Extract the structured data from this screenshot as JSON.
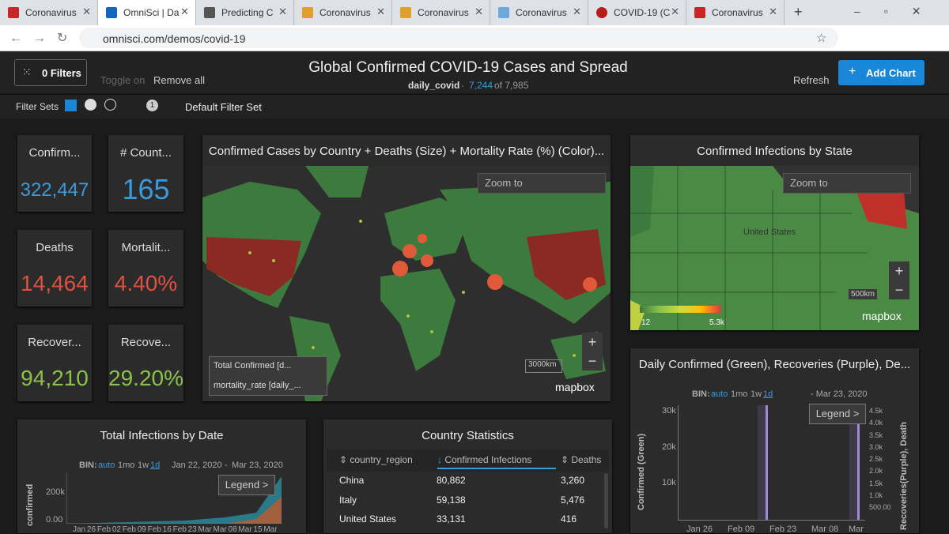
{
  "browser": {
    "tabs": [
      "Coronavirus",
      "OmniSci | Da",
      "Predicting C",
      "Coronavirus",
      "Coronavirus",
      "Coronavirus",
      "COVID-19 (C",
      "Coronavirus"
    ],
    "url": "omnisci.com/demos/covid-19"
  },
  "header": {
    "filters": "0 Filters",
    "toggle": "Toggle on",
    "remove_all": "Remove all",
    "title": "Global Confirmed COVID-19 Cases and Spread",
    "source": "daily_covid",
    "separator": "·",
    "filtered_count": "7,244",
    "total_count": "of 7,985",
    "refresh": "Refresh",
    "add_chart": "Add Chart"
  },
  "filter_bar": {
    "label": "Filter Sets",
    "set_number": "1",
    "set_name": "Default Filter Set"
  },
  "kpis": [
    {
      "title": "Confirm...",
      "value": "322,447"
    },
    {
      "title": "# Count...",
      "value": "165"
    },
    {
      "title": "Deaths",
      "value": "14,464"
    },
    {
      "title": "Mortalit...",
      "value": "4.40%"
    },
    {
      "title": "Recover...",
      "value": "94,210"
    },
    {
      "title": "Recove...",
      "value": "29.20%"
    }
  ],
  "world_map": {
    "title": "Confirmed Cases by Country + Deaths (Size) + Mortality Rate (%) (Color)...",
    "zoom": "Zoom to",
    "layers": [
      "Total Confirmed [d...",
      "mortality_rate [daily_..."
    ],
    "scale": "3000km",
    "attribution": "mapbox"
  },
  "state_map": {
    "title": "Confirmed Infections by State",
    "zoom": "Zoom to",
    "country_label": "United States",
    "legend_min": "12",
    "legend_max": "5.3k",
    "scale": "500km",
    "attribution": "mapbox"
  },
  "daily_chart": {
    "title": "Daily Confirmed (Green), Recoveries (Purple), De...",
    "bin_label": "BIN:",
    "bins": [
      "auto",
      "1mo",
      "1w",
      "1d"
    ],
    "range_end": "- Mar 23, 2020",
    "legend": "Legend >",
    "y_axis_label": "Confirmed (Green)",
    "y2_axis_label": "Recoveries(Purple), Death",
    "yticks": [
      "30k",
      "20k",
      "10k"
    ],
    "y2ticks": [
      "4.5k",
      "4.0k",
      "3.5k",
      "3.0k",
      "2.5k",
      "2.0k",
      "1.5k",
      "1.0k",
      "500.00"
    ],
    "xticks": [
      "Jan 26",
      "Feb 09",
      "Feb 23",
      "Mar 08",
      "Mar"
    ]
  },
  "total_chart": {
    "title": "Total Infections by Date",
    "bin_label": "BIN:",
    "bins": [
      "auto",
      "1mo",
      "1w",
      "1d"
    ],
    "range_start": "Jan 22, 2020",
    "range_sep": "-",
    "range_end": "Mar 23, 2020",
    "legend": "Legend >",
    "y_axis_label": "confirmed",
    "yticks": [
      "200k",
      "0.00"
    ],
    "xticks": [
      "Jan 26",
      "Feb 02",
      "Feb 09",
      "Feb 16",
      "Feb 23",
      "Mar",
      "Mar 08",
      "Mar 15",
      "Mar"
    ]
  },
  "country_table": {
    "title": "Country Statistics",
    "columns": [
      "country_region",
      "Confirmed Infections",
      "Deaths"
    ],
    "rows": [
      [
        "China",
        "80,862",
        "3,260"
      ],
      [
        "Italy",
        "59,138",
        "5,476"
      ],
      [
        "United States",
        "33,131",
        "416"
      ]
    ]
  }
}
